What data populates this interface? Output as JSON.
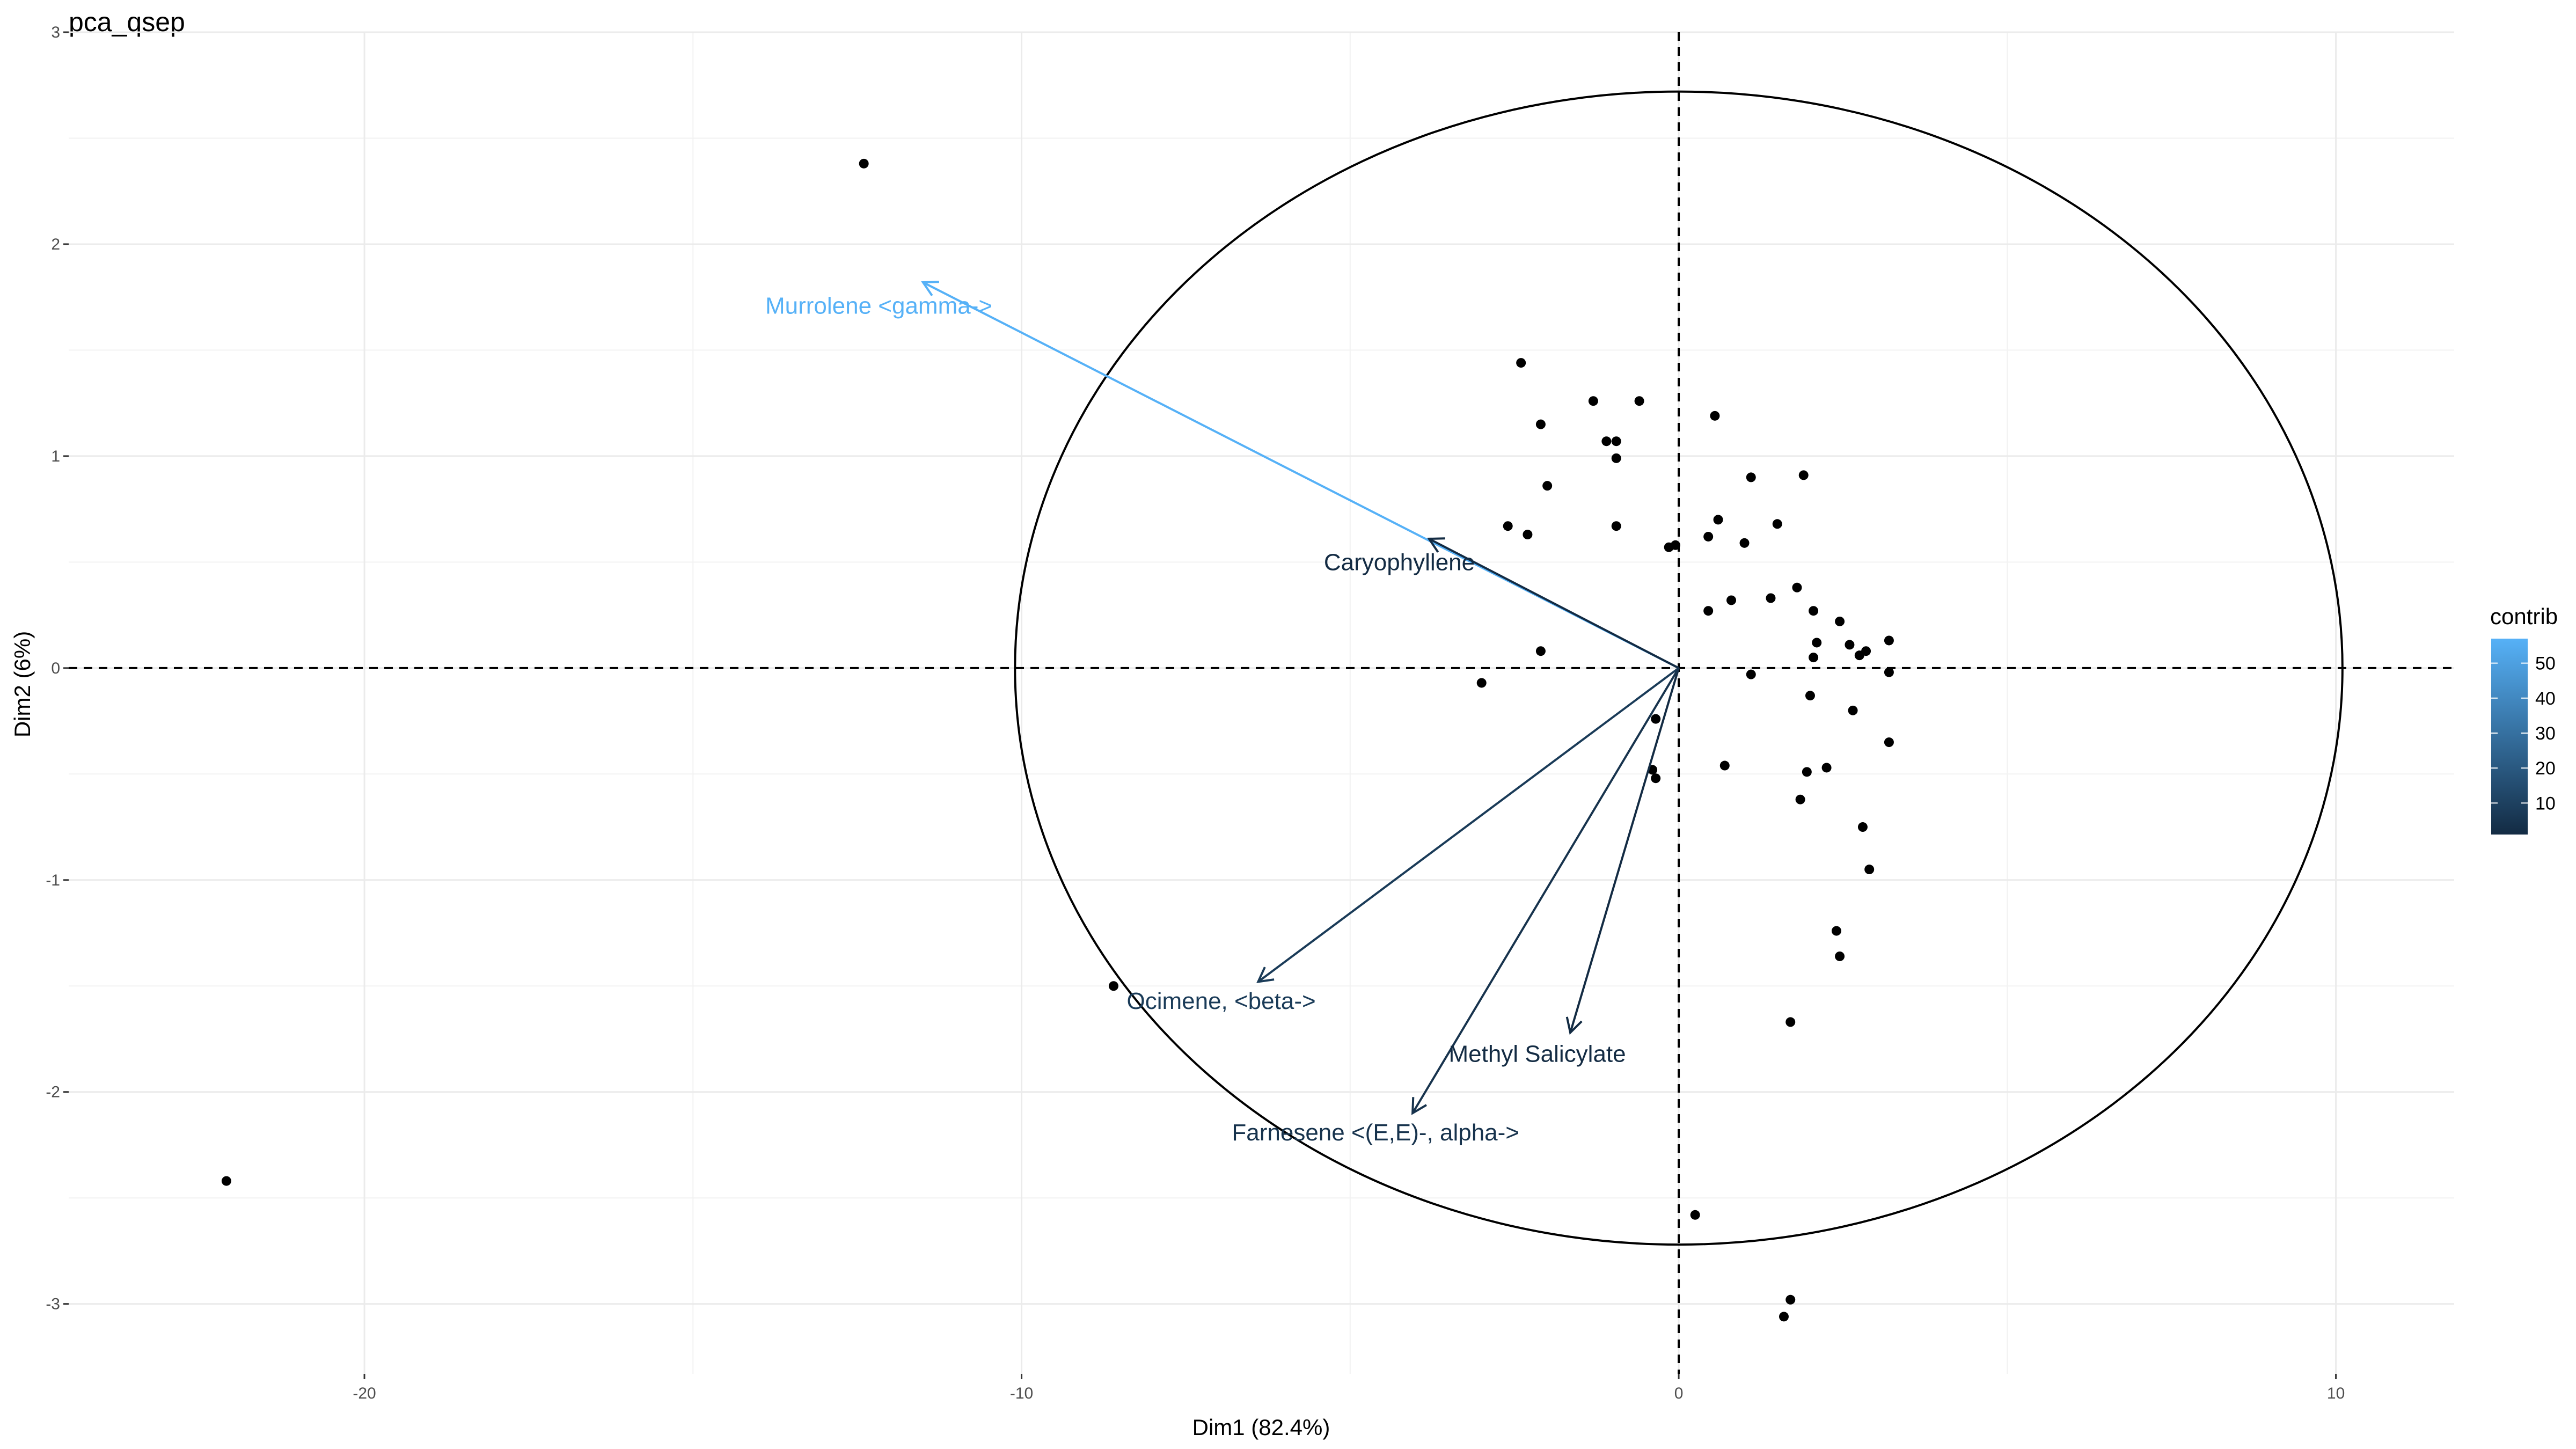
{
  "chart_data": {
    "type": "scatter",
    "title": "pca_qsep",
    "xlabel": "Dim1 (82.4%)",
    "ylabel": "Dim2 (6%)",
    "xlim": [
      -24.5,
      11.8
    ],
    "ylim": [
      -3.33,
      3.0
    ],
    "x_ticks": [
      -20,
      -10,
      0,
      10
    ],
    "y_ticks": [
      -3,
      -2,
      -1,
      0,
      1,
      2,
      3
    ],
    "grid": true,
    "reference_lines": {
      "x": 0,
      "y": 0,
      "style": "dashed"
    },
    "circle": {
      "center": [
        0,
        0
      ],
      "rx": 10.1,
      "ry": 2.72
    },
    "individuals": [
      [
        -12.4,
        2.38
      ],
      [
        -22.1,
        -2.42
      ],
      [
        -8.6,
        -1.5
      ],
      [
        -2.4,
        1.44
      ],
      [
        -2.1,
        1.15
      ],
      [
        -1.3,
        1.26
      ],
      [
        -0.6,
        1.26
      ],
      [
        -1.1,
        1.07
      ],
      [
        -0.95,
        1.07
      ],
      [
        -0.95,
        0.99
      ],
      [
        -2.0,
        0.86
      ],
      [
        -2.6,
        0.67
      ],
      [
        -2.3,
        0.63
      ],
      [
        -0.95,
        0.67
      ],
      [
        -0.15,
        0.57
      ],
      [
        -0.05,
        0.58
      ],
      [
        -2.1,
        0.08
      ],
      [
        -3.0,
        -0.07
      ],
      [
        -0.35,
        -0.24
      ],
      [
        -0.4,
        -0.48
      ],
      [
        -0.35,
        -0.52
      ],
      [
        0.55,
        1.19
      ],
      [
        1.1,
        0.9
      ],
      [
        1.9,
        0.91
      ],
      [
        0.6,
        0.7
      ],
      [
        0.45,
        0.62
      ],
      [
        1.0,
        0.59
      ],
      [
        1.5,
        0.68
      ],
      [
        0.8,
        0.32
      ],
      [
        0.45,
        0.27
      ],
      [
        1.4,
        0.33
      ],
      [
        1.8,
        0.38
      ],
      [
        2.05,
        0.27
      ],
      [
        2.45,
        0.22
      ],
      [
        2.1,
        0.12
      ],
      [
        2.6,
        0.11
      ],
      [
        2.85,
        0.08
      ],
      [
        3.2,
        0.13
      ],
      [
        2.05,
        0.05
      ],
      [
        2.75,
        0.06
      ],
      [
        3.2,
        -0.02
      ],
      [
        1.1,
        -0.03
      ],
      [
        2.0,
        -0.13
      ],
      [
        2.65,
        -0.2
      ],
      [
        3.2,
        -0.35
      ],
      [
        0.7,
        -0.46
      ],
      [
        1.95,
        -0.49
      ],
      [
        2.25,
        -0.47
      ],
      [
        1.85,
        -0.62
      ],
      [
        2.8,
        -0.75
      ],
      [
        2.9,
        -0.95
      ],
      [
        2.4,
        -1.24
      ],
      [
        2.45,
        -1.36
      ],
      [
        1.7,
        -1.67
      ],
      [
        0.25,
        -2.58
      ],
      [
        1.7,
        -2.98
      ],
      [
        1.6,
        -3.06
      ]
    ],
    "variables": [
      {
        "name": "Murrolene <gamma->",
        "x": -11.5,
        "y": 1.82,
        "contrib": 57,
        "color": "#56b1f7",
        "label_x": -13.9,
        "label_y": 1.71
      },
      {
        "name": "Caryophyllene",
        "x": -3.8,
        "y": 0.61,
        "contrib": 6,
        "color": "#132b43",
        "label_x": -5.4,
        "label_y": 0.5
      },
      {
        "name": "Ocimene, <beta->",
        "x": -6.4,
        "y": -1.48,
        "contrib": 10,
        "color": "#1a3b58",
        "label_x": -8.4,
        "label_y": -1.57
      },
      {
        "name": "Methyl Salicylate",
        "x": -1.65,
        "y": -1.72,
        "contrib": 5,
        "color": "#132b43",
        "label_x": -3.5,
        "label_y": -1.82
      },
      {
        "name": "Farnesene <(E,E)-, alpha->",
        "x": -4.05,
        "y": -2.1,
        "contrib": 8,
        "color": "#17334d",
        "label_x": -6.8,
        "label_y": -2.19
      }
    ],
    "legend": {
      "title": "contrib",
      "position": "right",
      "breaks": [
        10,
        20,
        30,
        40,
        50
      ],
      "range": [
        1,
        57
      ],
      "low_color": "#132b43",
      "high_color": "#56b1f7"
    }
  }
}
